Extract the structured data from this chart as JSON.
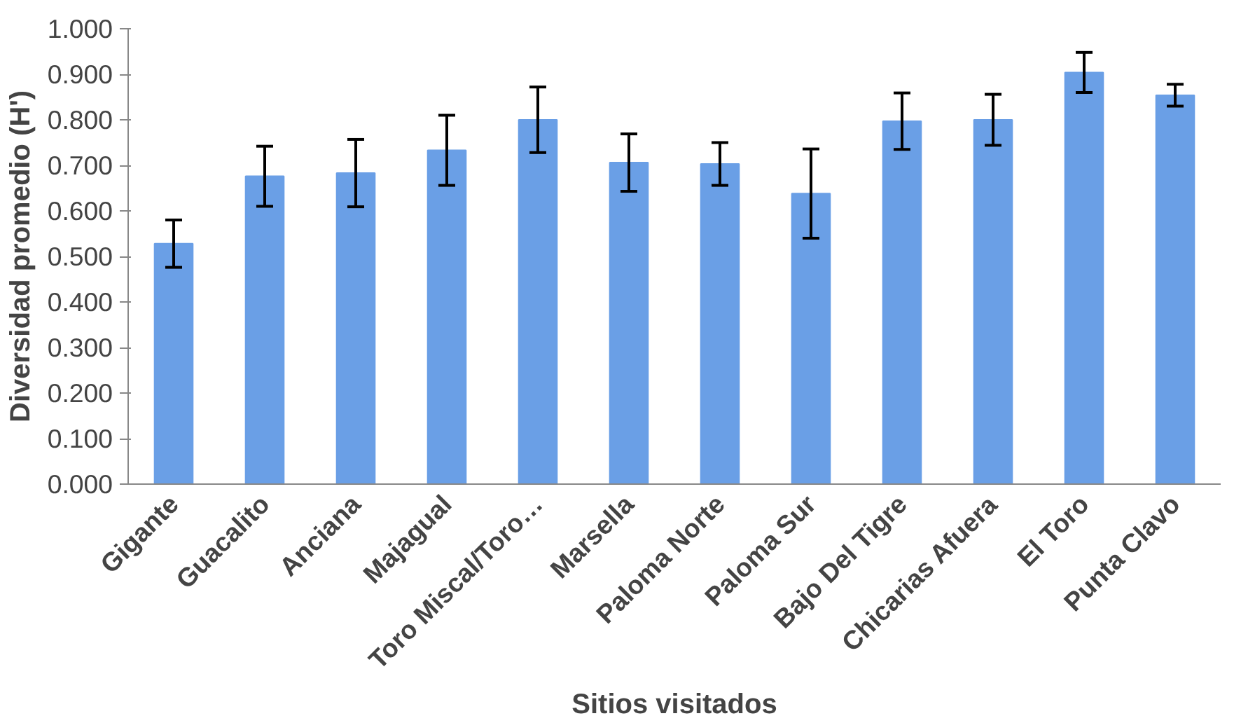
{
  "chart_data": {
    "type": "bar",
    "xlabel": "Sitios visitados",
    "ylabel": "Diversidad promedio (H')",
    "categories": [
      "Gigante",
      "Guacalito",
      "Anciana",
      "Majagual",
      "Toro Miscal/Toro…",
      "Marsella",
      "Paloma Norte",
      "Paloma Sur",
      "Bajo Del Tigre",
      "Chicarias Afuera",
      "El Toro",
      "Punta Clavo"
    ],
    "values": [
      0.528,
      0.676,
      0.683,
      0.733,
      0.8,
      0.706,
      0.703,
      0.638,
      0.797,
      0.8,
      0.904,
      0.854
    ],
    "errors": [
      0.052,
      0.066,
      0.074,
      0.077,
      0.072,
      0.063,
      0.047,
      0.098,
      0.062,
      0.056,
      0.044,
      0.024
    ],
    "color": "#6a9fe6",
    "ylim": [
      0,
      1
    ],
    "yticks": [
      {
        "value": 0,
        "label": "0.000"
      },
      {
        "value": 0.1,
        "label": "0.100"
      },
      {
        "value": 0.2,
        "label": "0.200"
      },
      {
        "value": 0.3,
        "label": "0.300"
      },
      {
        "value": 0.4,
        "label": "0.400"
      },
      {
        "value": 0.5,
        "label": "0.500"
      },
      {
        "value": 0.6,
        "label": "0.600"
      },
      {
        "value": 0.7,
        "label": "0.700"
      },
      {
        "value": 0.8,
        "label": "0.800"
      },
      {
        "value": 0.9,
        "label": "0.900"
      },
      {
        "value": 1,
        "label": "1.000"
      }
    ],
    "grid": false
  }
}
